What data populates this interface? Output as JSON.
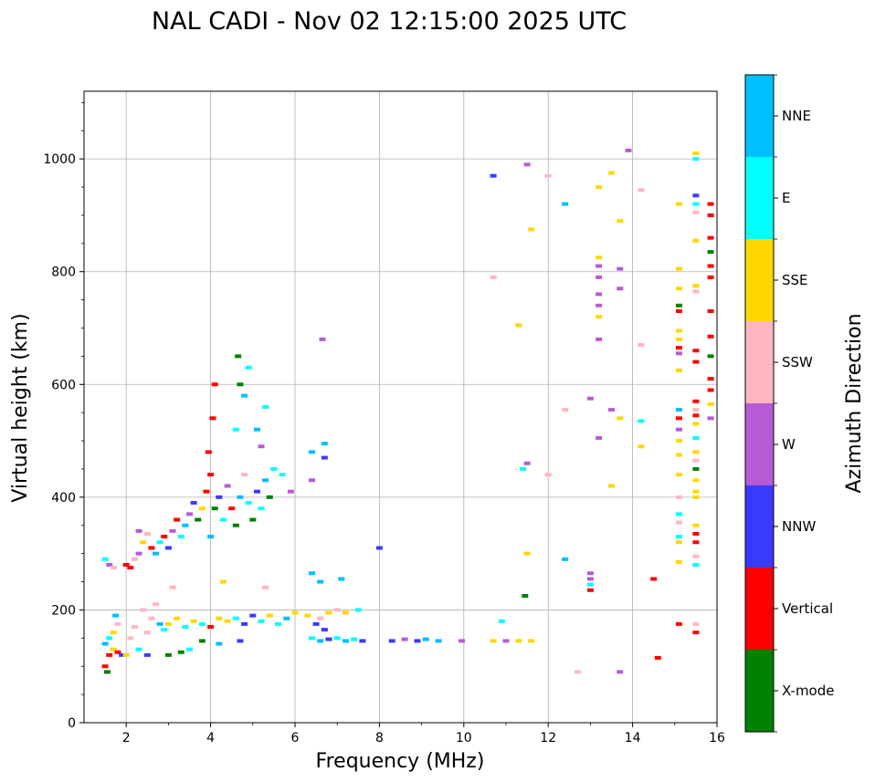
{
  "chart_data": {
    "type": "scatter",
    "title": "NAL CADI - Nov 02 12:15:00 2025 UTC",
    "xlabel": "Frequency (MHz)",
    "ylabel": "Virtual height (km)",
    "xlim": [
      1,
      16
    ],
    "ylim": [
      0,
      1120
    ],
    "xticks": [
      2,
      4,
      6,
      8,
      10,
      12,
      14,
      16
    ],
    "yticks": [
      0,
      200,
      400,
      600,
      800,
      1000
    ],
    "grid": true,
    "colorbar": {
      "title": "Azimuth Direction",
      "categories": [
        {
          "label": "X-mode",
          "color": "#008000"
        },
        {
          "label": "Vertical",
          "color": "#ff0000"
        },
        {
          "label": "NNW",
          "color": "#3a3aff"
        },
        {
          "label": "W",
          "color": "#b65bd6"
        },
        {
          "label": "SSW",
          "color": "#ffb6c1"
        },
        {
          "label": "SSE",
          "color": "#ffd700"
        },
        {
          "label": "E",
          "color": "#00ffff"
        },
        {
          "label": "NNE",
          "color": "#00bfff"
        }
      ]
    },
    "points": [
      {
        "f": 1.5,
        "h": 290,
        "c": 6
      },
      {
        "f": 1.6,
        "h": 280,
        "c": 3
      },
      {
        "f": 1.7,
        "h": 275,
        "c": 4
      },
      {
        "f": 1.5,
        "h": 100,
        "c": 1
      },
      {
        "f": 1.55,
        "h": 90,
        "c": 0
      },
      {
        "f": 1.6,
        "h": 120,
        "c": 1
      },
      {
        "f": 1.7,
        "h": 130,
        "c": 5
      },
      {
        "f": 1.8,
        "h": 125,
        "c": 1
      },
      {
        "f": 1.9,
        "h": 120,
        "c": 2
      },
      {
        "f": 1.5,
        "h": 140,
        "c": 7
      },
      {
        "f": 1.6,
        "h": 150,
        "c": 6
      },
      {
        "f": 1.7,
        "h": 160,
        "c": 5
      },
      {
        "f": 1.8,
        "h": 175,
        "c": 4
      },
      {
        "f": 1.75,
        "h": 190,
        "c": 7
      },
      {
        "f": 2.0,
        "h": 120,
        "c": 5
      },
      {
        "f": 2.1,
        "h": 150,
        "c": 4
      },
      {
        "f": 2.2,
        "h": 170,
        "c": 4
      },
      {
        "f": 2.3,
        "h": 130,
        "c": 6
      },
      {
        "f": 2.5,
        "h": 160,
        "c": 4
      },
      {
        "f": 2.6,
        "h": 185,
        "c": 4
      },
      {
        "f": 2.4,
        "h": 200,
        "c": 4
      },
      {
        "f": 2.7,
        "h": 210,
        "c": 4
      },
      {
        "f": 2.5,
        "h": 120,
        "c": 2
      },
      {
        "f": 2.8,
        "h": 175,
        "c": 7
      },
      {
        "f": 2.9,
        "h": 165,
        "c": 6
      },
      {
        "f": 2.0,
        "h": 280,
        "c": 1
      },
      {
        "f": 2.1,
        "h": 275,
        "c": 1
      },
      {
        "f": 2.2,
        "h": 290,
        "c": 4
      },
      {
        "f": 2.3,
        "h": 300,
        "c": 3
      },
      {
        "f": 2.4,
        "h": 320,
        "c": 5
      },
      {
        "f": 2.3,
        "h": 340,
        "c": 3
      },
      {
        "f": 2.5,
        "h": 335,
        "c": 4
      },
      {
        "f": 2.6,
        "h": 310,
        "c": 1
      },
      {
        "f": 2.7,
        "h": 300,
        "c": 7
      },
      {
        "f": 2.8,
        "h": 320,
        "c": 6
      },
      {
        "f": 2.9,
        "h": 330,
        "c": 1
      },
      {
        "f": 3.0,
        "h": 310,
        "c": 2
      },
      {
        "f": 3.1,
        "h": 340,
        "c": 3
      },
      {
        "f": 3.2,
        "h": 360,
        "c": 1
      },
      {
        "f": 3.3,
        "h": 330,
        "c": 6
      },
      {
        "f": 3.4,
        "h": 350,
        "c": 7
      },
      {
        "f": 3.5,
        "h": 370,
        "c": 3
      },
      {
        "f": 3.6,
        "h": 390,
        "c": 2
      },
      {
        "f": 3.7,
        "h": 360,
        "c": 0
      },
      {
        "f": 3.8,
        "h": 380,
        "c": 5
      },
      {
        "f": 3.9,
        "h": 410,
        "c": 1
      },
      {
        "f": 4.0,
        "h": 330,
        "c": 7
      },
      {
        "f": 4.1,
        "h": 380,
        "c": 0
      },
      {
        "f": 4.2,
        "h": 400,
        "c": 2
      },
      {
        "f": 4.0,
        "h": 440,
        "c": 1
      },
      {
        "f": 3.95,
        "h": 480,
        "c": 1
      },
      {
        "f": 4.05,
        "h": 540,
        "c": 1
      },
      {
        "f": 4.1,
        "h": 600,
        "c": 1
      },
      {
        "f": 4.3,
        "h": 360,
        "c": 6
      },
      {
        "f": 4.4,
        "h": 420,
        "c": 3
      },
      {
        "f": 4.5,
        "h": 380,
        "c": 1
      },
      {
        "f": 4.6,
        "h": 350,
        "c": 0
      },
      {
        "f": 4.7,
        "h": 400,
        "c": 7
      },
      {
        "f": 4.8,
        "h": 440,
        "c": 4
      },
      {
        "f": 4.9,
        "h": 390,
        "c": 6
      },
      {
        "f": 5.0,
        "h": 360,
        "c": 0
      },
      {
        "f": 5.1,
        "h": 410,
        "c": 2
      },
      {
        "f": 5.2,
        "h": 380,
        "c": 6
      },
      {
        "f": 5.3,
        "h": 430,
        "c": 7
      },
      {
        "f": 5.4,
        "h": 400,
        "c": 0
      },
      {
        "f": 5.5,
        "h": 450,
        "c": 6
      },
      {
        "f": 4.6,
        "h": 520,
        "c": 6
      },
      {
        "f": 4.7,
        "h": 600,
        "c": 0
      },
      {
        "f": 4.8,
        "h": 580,
        "c": 7
      },
      {
        "f": 4.9,
        "h": 630,
        "c": 6
      },
      {
        "f": 4.65,
        "h": 650,
        "c": 0
      },
      {
        "f": 5.1,
        "h": 520,
        "c": 7
      },
      {
        "f": 5.3,
        "h": 560,
        "c": 6
      },
      {
        "f": 5.2,
        "h": 490,
        "c": 3
      },
      {
        "f": 5.7,
        "h": 440,
        "c": 6
      },
      {
        "f": 5.9,
        "h": 410,
        "c": 3
      },
      {
        "f": 3.0,
        "h": 120,
        "c": 0
      },
      {
        "f": 3.3,
        "h": 125,
        "c": 0
      },
      {
        "f": 3.5,
        "h": 130,
        "c": 6
      },
      {
        "f": 3.0,
        "h": 175,
        "c": 5
      },
      {
        "f": 3.2,
        "h": 185,
        "c": 5
      },
      {
        "f": 3.4,
        "h": 170,
        "c": 6
      },
      {
        "f": 3.6,
        "h": 180,
        "c": 5
      },
      {
        "f": 3.8,
        "h": 175,
        "c": 6
      },
      {
        "f": 4.0,
        "h": 170,
        "c": 1
      },
      {
        "f": 4.2,
        "h": 185,
        "c": 5
      },
      {
        "f": 4.4,
        "h": 180,
        "c": 5
      },
      {
        "f": 4.6,
        "h": 185,
        "c": 6
      },
      {
        "f": 4.8,
        "h": 175,
        "c": 2
      },
      {
        "f": 5.0,
        "h": 190,
        "c": 2
      },
      {
        "f": 5.2,
        "h": 180,
        "c": 6
      },
      {
        "f": 5.4,
        "h": 190,
        "c": 5
      },
      {
        "f": 5.6,
        "h": 175,
        "c": 6
      },
      {
        "f": 5.8,
        "h": 185,
        "c": 7
      },
      {
        "f": 6.0,
        "h": 195,
        "c": 5
      },
      {
        "f": 3.8,
        "h": 145,
        "c": 0
      },
      {
        "f": 4.2,
        "h": 140,
        "c": 7
      },
      {
        "f": 4.7,
        "h": 145,
        "c": 2
      },
      {
        "f": 3.1,
        "h": 240,
        "c": 4
      },
      {
        "f": 4.3,
        "h": 250,
        "c": 5
      },
      {
        "f": 5.3,
        "h": 240,
        "c": 4
      },
      {
        "f": 6.4,
        "h": 150,
        "c": 6
      },
      {
        "f": 6.6,
        "h": 145,
        "c": 7
      },
      {
        "f": 6.8,
        "h": 148,
        "c": 2
      },
      {
        "f": 7.0,
        "h": 150,
        "c": 6
      },
      {
        "f": 7.2,
        "h": 145,
        "c": 7
      },
      {
        "f": 7.4,
        "h": 148,
        "c": 6
      },
      {
        "f": 7.6,
        "h": 145,
        "c": 2
      },
      {
        "f": 6.3,
        "h": 190,
        "c": 5
      },
      {
        "f": 6.6,
        "h": 185,
        "c": 4
      },
      {
        "f": 6.8,
        "h": 195,
        "c": 5
      },
      {
        "f": 7.0,
        "h": 200,
        "c": 4
      },
      {
        "f": 7.2,
        "h": 195,
        "c": 5
      },
      {
        "f": 7.5,
        "h": 200,
        "c": 6
      },
      {
        "f": 6.5,
        "h": 175,
        "c": 2
      },
      {
        "f": 6.7,
        "h": 165,
        "c": 2
      },
      {
        "f": 6.4,
        "h": 265,
        "c": 7
      },
      {
        "f": 6.6,
        "h": 250,
        "c": 7
      },
      {
        "f": 6.4,
        "h": 480,
        "c": 7
      },
      {
        "f": 6.7,
        "h": 470,
        "c": 2
      },
      {
        "f": 6.4,
        "h": 430,
        "c": 3
      },
      {
        "f": 6.7,
        "h": 495,
        "c": 7
      },
      {
        "f": 6.65,
        "h": 680,
        "c": 3
      },
      {
        "f": 7.1,
        "h": 255,
        "c": 7
      },
      {
        "f": 8.0,
        "h": 310,
        "c": 2
      },
      {
        "f": 8.3,
        "h": 145,
        "c": 2
      },
      {
        "f": 8.6,
        "h": 148,
        "c": 3
      },
      {
        "f": 8.9,
        "h": 145,
        "c": 2
      },
      {
        "f": 9.1,
        "h": 148,
        "c": 7
      },
      {
        "f": 9.4,
        "h": 145,
        "c": 7
      },
      {
        "f": 9.95,
        "h": 145,
        "c": 3
      },
      {
        "f": 10.7,
        "h": 145,
        "c": 5
      },
      {
        "f": 11.0,
        "h": 145,
        "c": 3
      },
      {
        "f": 11.3,
        "h": 145,
        "c": 5
      },
      {
        "f": 11.6,
        "h": 145,
        "c": 5
      },
      {
        "f": 10.9,
        "h": 180,
        "c": 6
      },
      {
        "f": 10.7,
        "h": 970,
        "c": 2
      },
      {
        "f": 10.7,
        "h": 790,
        "c": 4
      },
      {
        "f": 11.3,
        "h": 705,
        "c": 5
      },
      {
        "f": 11.5,
        "h": 990,
        "c": 3
      },
      {
        "f": 11.6,
        "h": 875,
        "c": 5
      },
      {
        "f": 11.4,
        "h": 450,
        "c": 6
      },
      {
        "f": 11.5,
        "h": 460,
        "c": 3
      },
      {
        "f": 11.5,
        "h": 300,
        "c": 5
      },
      {
        "f": 11.45,
        "h": 225,
        "c": 0
      },
      {
        "f": 12.0,
        "h": 970,
        "c": 4
      },
      {
        "f": 12.4,
        "h": 920,
        "c": 7
      },
      {
        "f": 12.0,
        "h": 440,
        "c": 4
      },
      {
        "f": 12.4,
        "h": 555,
        "c": 4
      },
      {
        "f": 12.4,
        "h": 290,
        "c": 7
      },
      {
        "f": 12.7,
        "h": 90,
        "c": 4
      },
      {
        "f": 13.2,
        "h": 950,
        "c": 5
      },
      {
        "f": 13.5,
        "h": 975,
        "c": 5
      },
      {
        "f": 13.2,
        "h": 825,
        "c": 5
      },
      {
        "f": 13.2,
        "h": 810,
        "c": 3
      },
      {
        "f": 13.2,
        "h": 790,
        "c": 3
      },
      {
        "f": 13.2,
        "h": 760,
        "c": 3
      },
      {
        "f": 13.2,
        "h": 740,
        "c": 3
      },
      {
        "f": 13.2,
        "h": 720,
        "c": 5
      },
      {
        "f": 13.2,
        "h": 680,
        "c": 3
      },
      {
        "f": 13.0,
        "h": 575,
        "c": 3
      },
      {
        "f": 13.2,
        "h": 505,
        "c": 3
      },
      {
        "f": 13.5,
        "h": 420,
        "c": 5
      },
      {
        "f": 13.5,
        "h": 555,
        "c": 3
      },
      {
        "f": 13.7,
        "h": 540,
        "c": 5
      },
      {
        "f": 13.7,
        "h": 890,
        "c": 5
      },
      {
        "f": 13.7,
        "h": 805,
        "c": 3
      },
      {
        "f": 13.7,
        "h": 770,
        "c": 3
      },
      {
        "f": 13.9,
        "h": 1015,
        "c": 3
      },
      {
        "f": 13.0,
        "h": 265,
        "c": 3
      },
      {
        "f": 13.0,
        "h": 255,
        "c": 3
      },
      {
        "f": 13.0,
        "h": 245,
        "c": 6
      },
      {
        "f": 13.0,
        "h": 235,
        "c": 1
      },
      {
        "f": 13.7,
        "h": 90,
        "c": 3
      },
      {
        "f": 14.2,
        "h": 945,
        "c": 4
      },
      {
        "f": 14.2,
        "h": 670,
        "c": 4
      },
      {
        "f": 14.2,
        "h": 535,
        "c": 6
      },
      {
        "f": 14.2,
        "h": 490,
        "c": 5
      },
      {
        "f": 14.5,
        "h": 255,
        "c": 1
      },
      {
        "f": 14.6,
        "h": 115,
        "c": 1
      },
      {
        "f": 15.1,
        "h": 920,
        "c": 5
      },
      {
        "f": 15.1,
        "h": 805,
        "c": 5
      },
      {
        "f": 15.1,
        "h": 770,
        "c": 5
      },
      {
        "f": 15.1,
        "h": 740,
        "c": 0
      },
      {
        "f": 15.1,
        "h": 730,
        "c": 1
      },
      {
        "f": 15.1,
        "h": 695,
        "c": 5
      },
      {
        "f": 15.1,
        "h": 680,
        "c": 5
      },
      {
        "f": 15.1,
        "h": 665,
        "c": 1
      },
      {
        "f": 15.1,
        "h": 655,
        "c": 3
      },
      {
        "f": 15.1,
        "h": 625,
        "c": 5
      },
      {
        "f": 15.1,
        "h": 555,
        "c": 7
      },
      {
        "f": 15.1,
        "h": 540,
        "c": 1
      },
      {
        "f": 15.1,
        "h": 520,
        "c": 3
      },
      {
        "f": 15.1,
        "h": 500,
        "c": 5
      },
      {
        "f": 15.1,
        "h": 475,
        "c": 5
      },
      {
        "f": 15.1,
        "h": 440,
        "c": 5
      },
      {
        "f": 15.1,
        "h": 400,
        "c": 4
      },
      {
        "f": 15.1,
        "h": 370,
        "c": 6
      },
      {
        "f": 15.1,
        "h": 355,
        "c": 4
      },
      {
        "f": 15.1,
        "h": 330,
        "c": 6
      },
      {
        "f": 15.1,
        "h": 320,
        "c": 5
      },
      {
        "f": 15.1,
        "h": 285,
        "c": 5
      },
      {
        "f": 15.1,
        "h": 175,
        "c": 1
      },
      {
        "f": 15.5,
        "h": 1010,
        "c": 5
      },
      {
        "f": 15.5,
        "h": 1000,
        "c": 6
      },
      {
        "f": 15.5,
        "h": 935,
        "c": 2
      },
      {
        "f": 15.5,
        "h": 920,
        "c": 6
      },
      {
        "f": 15.5,
        "h": 905,
        "c": 4
      },
      {
        "f": 15.5,
        "h": 855,
        "c": 5
      },
      {
        "f": 15.5,
        "h": 775,
        "c": 5
      },
      {
        "f": 15.5,
        "h": 765,
        "c": 4
      },
      {
        "f": 15.5,
        "h": 660,
        "c": 1
      },
      {
        "f": 15.5,
        "h": 640,
        "c": 1
      },
      {
        "f": 15.5,
        "h": 570,
        "c": 1
      },
      {
        "f": 15.5,
        "h": 555,
        "c": 4
      },
      {
        "f": 15.5,
        "h": 545,
        "c": 1
      },
      {
        "f": 15.5,
        "h": 530,
        "c": 5
      },
      {
        "f": 15.5,
        "h": 505,
        "c": 6
      },
      {
        "f": 15.5,
        "h": 480,
        "c": 5
      },
      {
        "f": 15.5,
        "h": 465,
        "c": 4
      },
      {
        "f": 15.5,
        "h": 450,
        "c": 0
      },
      {
        "f": 15.5,
        "h": 430,
        "c": 5
      },
      {
        "f": 15.5,
        "h": 410,
        "c": 5
      },
      {
        "f": 15.5,
        "h": 400,
        "c": 5
      },
      {
        "f": 15.5,
        "h": 350,
        "c": 5
      },
      {
        "f": 15.5,
        "h": 335,
        "c": 1
      },
      {
        "f": 15.5,
        "h": 320,
        "c": 1
      },
      {
        "f": 15.5,
        "h": 295,
        "c": 4
      },
      {
        "f": 15.5,
        "h": 280,
        "c": 6
      },
      {
        "f": 15.5,
        "h": 175,
        "c": 4
      },
      {
        "f": 15.5,
        "h": 160,
        "c": 1
      },
      {
        "f": 15.85,
        "h": 920,
        "c": 1
      },
      {
        "f": 15.85,
        "h": 900,
        "c": 1
      },
      {
        "f": 15.85,
        "h": 860,
        "c": 1
      },
      {
        "f": 15.85,
        "h": 835,
        "c": 0
      },
      {
        "f": 15.85,
        "h": 810,
        "c": 1
      },
      {
        "f": 15.85,
        "h": 790,
        "c": 1
      },
      {
        "f": 15.85,
        "h": 730,
        "c": 1
      },
      {
        "f": 15.85,
        "h": 685,
        "c": 1
      },
      {
        "f": 15.85,
        "h": 650,
        "c": 0
      },
      {
        "f": 15.85,
        "h": 610,
        "c": 1
      },
      {
        "f": 15.85,
        "h": 590,
        "c": 1
      },
      {
        "f": 15.85,
        "h": 565,
        "c": 5
      },
      {
        "f": 15.85,
        "h": 540,
        "c": 3
      }
    ]
  }
}
